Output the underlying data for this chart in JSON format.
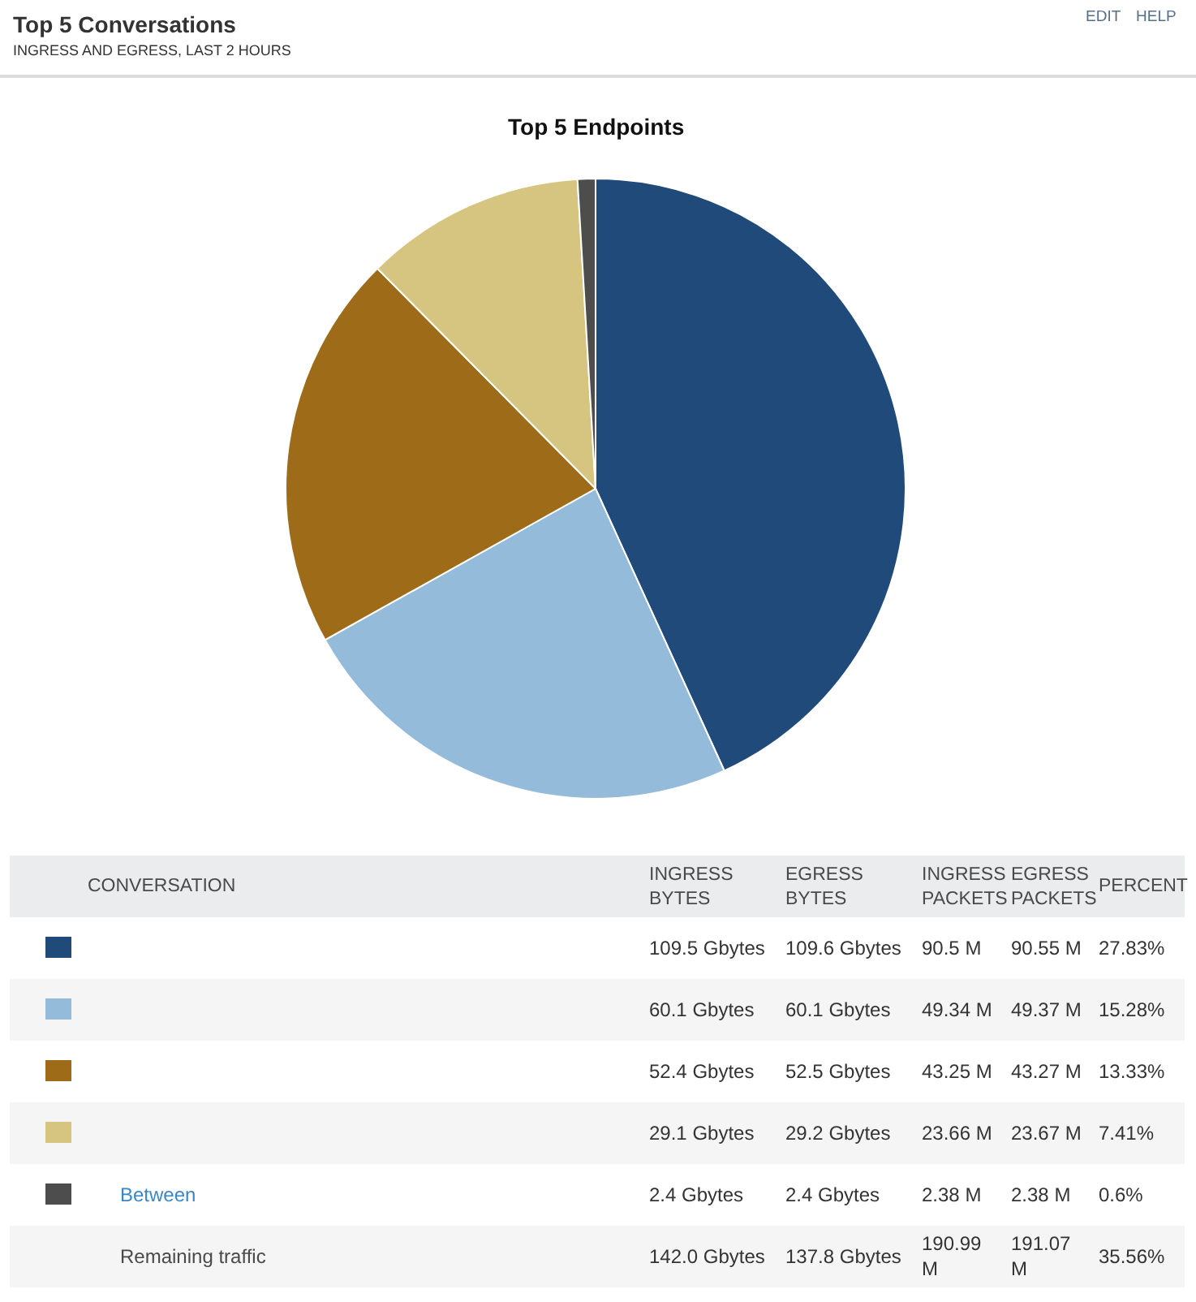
{
  "chart_data": [
    {
      "type": "other",
      "title": "Top 5 Conversations",
      "subtitle": "INGRESS AND EGRESS, LAST 2 HOURS",
      "annotations": [
        "EDIT",
        "HELP"
      ]
    },
    {
      "type": "pie",
      "title": "Top 5 Endpoints",
      "categories": [
        null,
        null,
        null,
        null,
        null
      ],
      "values": [
        43.18,
        23.71,
        20.68,
        11.5,
        0.93
      ],
      "colors": [
        "#1f4a7a",
        "#95bbdb",
        "#9e6c18",
        "#d6c580",
        "#4d4d4d"
      ]
    },
    {
      "type": "other",
      "ylabel": "CONVERSATION",
      "categories": [
        null,
        null,
        null,
        null,
        "Between",
        "Remaining traffic"
      ],
      "colors": [
        "#1f4a7a",
        "#95bbdb",
        "#9e6c18",
        "#d6c580",
        "#4d4d4d",
        null
      ],
      "annotations": [
        "INGRESS BYTES",
        "EGRESS BYTES",
        "INGRESS PACKETS",
        "EGRESS PACKETS",
        "PERCENT",
        "109.5 Gbytes",
        "109.6 Gbytes",
        "90.5 M",
        "90.55 M",
        "27.83%",
        "60.1 Gbytes",
        "60.1 Gbytes",
        "49.34 M",
        "49.37 M",
        "15.28%",
        "52.4 Gbytes",
        "52.5 Gbytes",
        "43.25 M",
        "43.27 M",
        "13.33%",
        "29.1 Gbytes",
        "29.2 Gbytes",
        "23.66 M",
        "23.67 M",
        "7.41%",
        "2.4 Gbytes",
        "2.4 Gbytes",
        "2.38 M",
        "2.38 M",
        "0.6%",
        "142.0 Gbytes",
        "137.8 Gbytes",
        "190.99 M",
        "191.07 M",
        "35.56%"
      ]
    }
  ]
}
